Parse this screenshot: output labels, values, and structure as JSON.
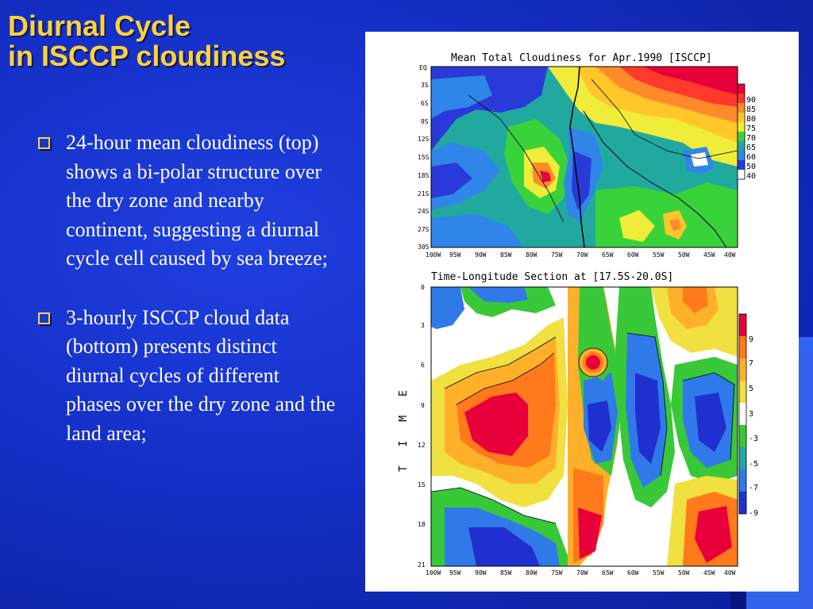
{
  "slide": {
    "title_line1": "Diurnal Cycle",
    "title_line2": "in ISCCP cloudiness",
    "bullets": [
      "24-hour mean cloudiness (top) shows a bi-polar structure over the dry zone and nearby continent, suggesting a diurnal cycle cell caused by sea breeze;",
      "3-hourly ISCCP cloud data (bottom) presents distinct diurnal cycles of different phases over the dry zone and the land area;"
    ],
    "bullet_icon": "hollow-square-bullet-icon",
    "colors": {
      "background": "#1530c8",
      "title": "#ffd23a",
      "text": "#ffffff"
    }
  },
  "figure": {
    "top_map": {
      "title": "Mean Total Cloudiness for Apr.1990 [ISCCP]",
      "y_ticks": [
        "EQ",
        "3S",
        "6S",
        "9S",
        "12S",
        "15S",
        "18S",
        "21S",
        "24S",
        "27S",
        "30S"
      ],
      "x_ticks": [
        "100W",
        "95W",
        "90W",
        "85W",
        "80W",
        "75W",
        "70W",
        "65W",
        "60W",
        "55W",
        "50W",
        "45W",
        "40W"
      ],
      "colorbar": {
        "labels": [
          "90",
          "85",
          "80",
          "75",
          "70",
          "65",
          "60",
          "50",
          "40"
        ],
        "colors": [
          "#e8003a",
          "#ff3a2a",
          "#ff8a2a",
          "#ffc72a",
          "#f0ec3a",
          "#3ad23a",
          "#21a9a0",
          "#2f86e8",
          "#2a3ad8",
          "#ffffff"
        ]
      }
    },
    "bottom_section": {
      "title": "Time-Longitude Section at [17.5S-20.0S]",
      "y_axis_label": "T I M E",
      "y_ticks": [
        "0",
        "3",
        "6",
        "9",
        "12",
        "15",
        "18",
        "21"
      ],
      "x_ticks": [
        "100W",
        "95W",
        "90W",
        "85W",
        "80W",
        "75W",
        "70W",
        "65W",
        "60W",
        "55W",
        "50W",
        "45W",
        "40W"
      ],
      "colorbar": {
        "labels": [
          "9",
          "7",
          "5",
          "3",
          "-3",
          "-5",
          "-7",
          "-9"
        ],
        "colors": [
          "#e8003a",
          "#ff7a1a",
          "#ffb02a",
          "#f0e040",
          "#ffffff",
          "#38c838",
          "#20a8a0",
          "#2f7ae8",
          "#2030d0"
        ]
      }
    }
  }
}
